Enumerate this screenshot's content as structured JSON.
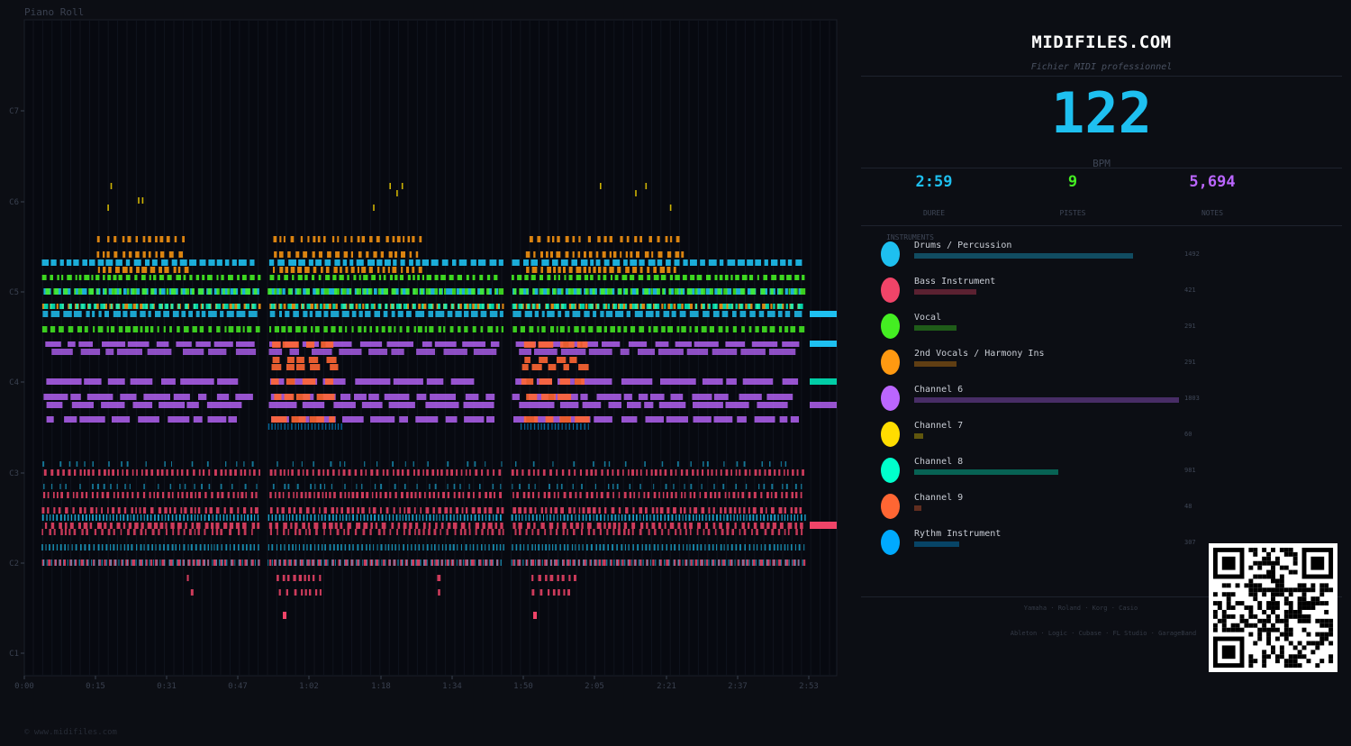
{
  "piano_roll": {
    "title": "Piano Roll",
    "footer": "© www.midifiles.com",
    "note_labels": [
      "C7",
      "C6",
      "C5",
      "C4",
      "C3",
      "C2",
      "C1"
    ],
    "time_labels": [
      "0:00",
      "0:15",
      "0:31",
      "0:47",
      "1:02",
      "1:18",
      "1:34",
      "1:50",
      "2:05",
      "2:21",
      "2:37",
      "2:53"
    ]
  },
  "panel": {
    "brand": "MIDIFILES.COM",
    "subtitle": "Fichier MIDI professionnel",
    "bpm": "122",
    "bpm_label": "BPM",
    "stats": [
      {
        "value": "2:59",
        "label": "DUREE",
        "color": "#1ec0f0"
      },
      {
        "value": "9",
        "label": "PISTES",
        "color": "#44ee22"
      },
      {
        "value": "5,694",
        "label": "NOTES",
        "color": "#bb66ff"
      }
    ],
    "instruments_title": "INSTRUMENTS",
    "instruments": [
      {
        "name": "Drums / Percussion",
        "count": "1492",
        "color": "#1ec0f0"
      },
      {
        "name": "Bass Instrument",
        "count": "421",
        "color": "#f04468"
      },
      {
        "name": "Vocal",
        "count": "291",
        "color": "#44ee22"
      },
      {
        "name": "2nd Vocals / Harmony Ins",
        "count": "291",
        "color": "#ff9911"
      },
      {
        "name": "Channel 6",
        "count": "1803",
        "color": "#bb66ff"
      },
      {
        "name": "Channel 7",
        "count": "60",
        "color": "#ffdd00"
      },
      {
        "name": "Channel 8",
        "count": "981",
        "color": "#00ffcc"
      },
      {
        "name": "Channel 9",
        "count": "48",
        "color": "#ff6633"
      },
      {
        "name": "Rythm Instrument",
        "count": "307",
        "color": "#00aaff"
      }
    ],
    "compat_hardware": "Yamaha · Roland · Korg · Casio",
    "compat_software": "Ableton · Logic · Cubase · FL Studio · GarageBand"
  }
}
